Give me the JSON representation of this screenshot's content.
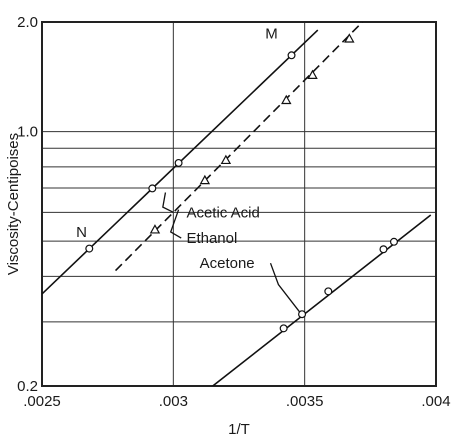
{
  "chart_data": {
    "type": "line",
    "title": "",
    "xlabel": "1/T",
    "ylabel": "Viscosity-Centipoises",
    "xlim": [
      0.0025,
      0.004
    ],
    "ylim": [
      0.2,
      2.0
    ],
    "yscale": "log",
    "grid": true,
    "x_ticks": [
      {
        "value": 0.0025,
        "label": ".0025"
      },
      {
        "value": 0.003,
        "label": ".003"
      },
      {
        "value": 0.0035,
        "label": ".0035"
      },
      {
        "value": 0.004,
        "label": ".004"
      }
    ],
    "y_ticks": [
      {
        "value": 0.2,
        "label": "0.2"
      },
      {
        "value": 1.0,
        "label": "1.0"
      },
      {
        "value": 2.0,
        "label": "2.0"
      }
    ],
    "y_gridlines": [
      0.3,
      0.4,
      0.5,
      0.6,
      0.7,
      0.8,
      0.9,
      1.0
    ],
    "x_gridlines": [
      0.003,
      0.0035
    ],
    "series": [
      {
        "name": "Acetic Acid",
        "style": "solid",
        "marker": "circle",
        "line": [
          [
            0.0025,
            0.358
          ],
          [
            0.00355,
            1.9
          ]
        ],
        "points": [
          {
            "x": 0.00268,
            "y": 0.477
          },
          {
            "x": 0.00292,
            "y": 0.698
          },
          {
            "x": 0.00302,
            "y": 0.82
          },
          {
            "x": 0.00345,
            "y": 1.62
          }
        ]
      },
      {
        "name": "Ethanol",
        "style": "dashed",
        "marker": "triangle",
        "line": [
          [
            0.00278,
            0.415
          ],
          [
            0.00372,
            2.0
          ]
        ],
        "points": [
          {
            "x": 0.00293,
            "y": 0.538
          },
          {
            "x": 0.00312,
            "y": 0.735
          },
          {
            "x": 0.0032,
            "y": 0.835
          },
          {
            "x": 0.00343,
            "y": 1.22
          },
          {
            "x": 0.00353,
            "y": 1.43
          },
          {
            "x": 0.00367,
            "y": 1.8
          }
        ]
      },
      {
        "name": "Acetone",
        "style": "solid",
        "marker": "circle",
        "line": [
          [
            0.00315,
            0.2
          ],
          [
            0.00398,
            0.59
          ]
        ],
        "points": [
          {
            "x": 0.00342,
            "y": 0.288
          },
          {
            "x": 0.00349,
            "y": 0.315
          },
          {
            "x": 0.00359,
            "y": 0.364
          },
          {
            "x": 0.0038,
            "y": 0.475
          },
          {
            "x": 0.00384,
            "y": 0.498
          }
        ]
      }
    ],
    "annotations": [
      {
        "text": "M",
        "x": 0.00335,
        "y": 1.86
      },
      {
        "text": "N",
        "x": 0.00263,
        "y": 0.53
      },
      {
        "text": "Acetic Acid",
        "x": 0.00305,
        "y": 0.6,
        "pointer": [
          [
            0.00297,
            0.68
          ],
          [
            0.00296,
            0.62
          ],
          [
            0.003,
            0.6
          ]
        ]
      },
      {
        "text": "Ethanol",
        "x": 0.00305,
        "y": 0.51,
        "pointer": [
          [
            0.00302,
            0.61
          ],
          [
            0.00299,
            0.53
          ],
          [
            0.00303,
            0.51
          ]
        ]
      },
      {
        "text": "Acetone",
        "x": 0.0031,
        "y": 0.435,
        "pointer": [
          [
            0.00337,
            0.435
          ],
          [
            0.0034,
            0.38
          ],
          [
            0.00348,
            0.32
          ]
        ]
      }
    ]
  }
}
